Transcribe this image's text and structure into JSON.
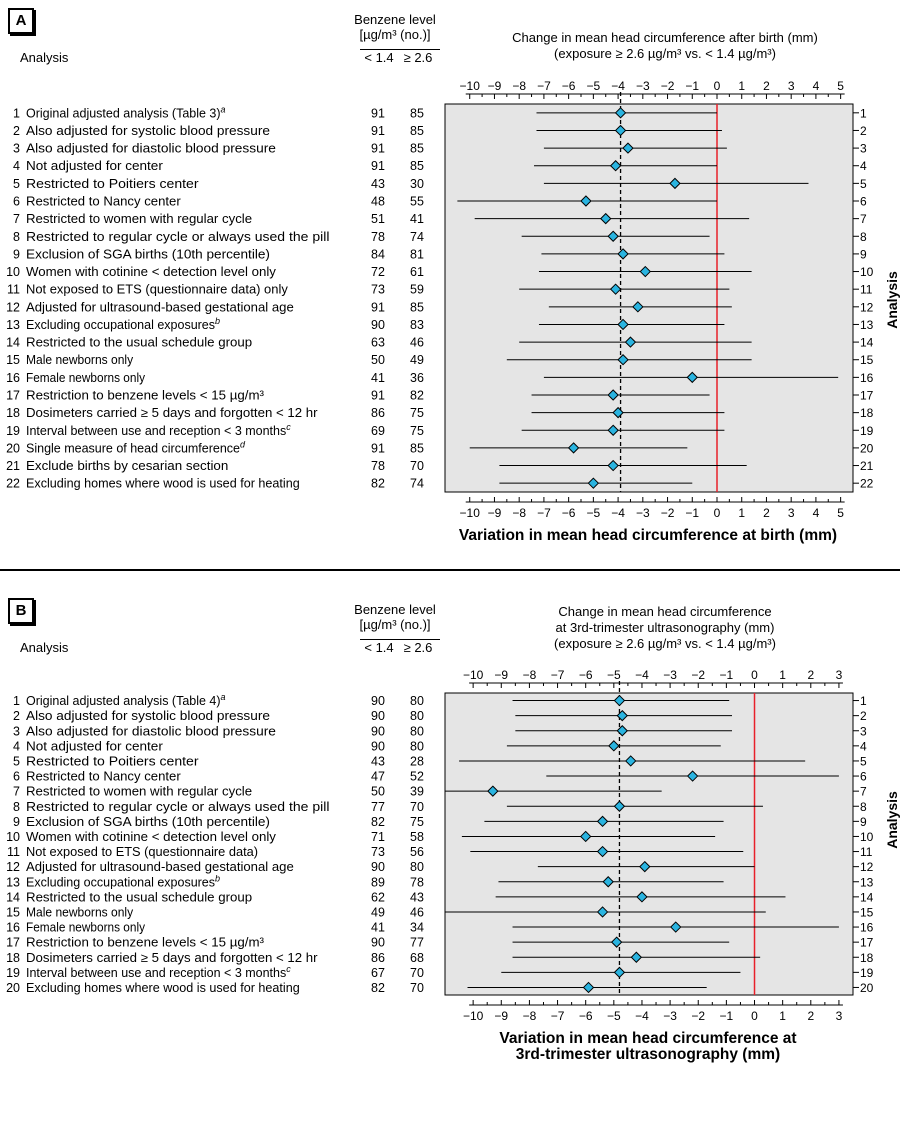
{
  "chart_data": [
    {
      "type": "forest",
      "panel_label": "A",
      "row_header": "Analysis",
      "benzene_header": [
        "Benzene level",
        "[µg/m³ (no.)]"
      ],
      "group_headers": [
        "< 1.4",
        "≥ 2.6"
      ],
      "effect_header": [
        "Change in mean head circumference after birth (mm)",
        "(exposure ≥ 2.6 µg/m³ vs. < 1.4 µg/m³)"
      ],
      "xlabel": "Variation in mean head circumference at birth (mm)",
      "ylabel": "Analysis",
      "xlim": [
        -11,
        5.5
      ],
      "xticks": [
        -10,
        -9,
        -8,
        -7,
        -6,
        -5,
        -4,
        -3,
        -2,
        -1,
        0,
        1,
        2,
        3,
        4,
        5
      ],
      "reference_line": 0,
      "dashed_line": -3.9,
      "rows": [
        {
          "n": 1,
          "label": "Original adjusted analysis (Table 3)",
          "sup": "a",
          "n_low": "91",
          "n_high": "85",
          "est": -3.9,
          "lo": -7.3,
          "hi": 0.0
        },
        {
          "n": 2,
          "label": "Also adjusted for systolic blood pressure",
          "sup": "",
          "n_low": "91",
          "n_high": "85",
          "est": -3.9,
          "lo": -7.3,
          "hi": 0.2
        },
        {
          "n": 3,
          "label": "Also adjusted for diastolic blood pressure",
          "sup": "",
          "n_low": "91",
          "n_high": "85",
          "est": -3.6,
          "lo": -7.0,
          "hi": 0.4
        },
        {
          "n": 4,
          "label": "Not adjusted for center",
          "sup": "",
          "n_low": "91",
          "n_high": "85",
          "est": -4.1,
          "lo": -7.4,
          "hi": 0.0
        },
        {
          "n": 5,
          "label": "Restricted to Poitiers center",
          "sup": "",
          "n_low": "43",
          "n_high": "30",
          "est": -1.7,
          "lo": -7.0,
          "hi": 3.7
        },
        {
          "n": 6,
          "label": "Restricted to Nancy center",
          "sup": "",
          "n_low": "48",
          "n_high": "55",
          "est": -5.3,
          "lo": -10.5,
          "hi": 0.0
        },
        {
          "n": 7,
          "label": "Restricted to women with regular cycle",
          "sup": "",
          "n_low": "51",
          "n_high": "41",
          "est": -4.5,
          "lo": -9.8,
          "hi": 1.3
        },
        {
          "n": 8,
          "label": "Restricted to regular cycle or always used the pill",
          "sup": "",
          "n_low": "78",
          "n_high": "74",
          "est": -4.2,
          "lo": -7.9,
          "hi": -0.3
        },
        {
          "n": 9,
          "label": "Exclusion of SGA births (10th percentile)",
          "sup": "",
          "n_low": "84",
          "n_high": "81",
          "est": -3.8,
          "lo": -7.1,
          "hi": 0.3
        },
        {
          "n": 10,
          "label": "Women with cotinine < detection level only",
          "sup": "",
          "n_low": "72",
          "n_high": "61",
          "est": -2.9,
          "lo": -7.2,
          "hi": 1.4
        },
        {
          "n": 11,
          "label": "Not exposed to ETS (questionnaire data) only",
          "sup": "",
          "n_low": "73",
          "n_high": "59",
          "est": -4.1,
          "lo": -8.0,
          "hi": 0.5
        },
        {
          "n": 12,
          "label": "Adjusted for ultrasound-based gestational age",
          "sup": "",
          "n_low": "91",
          "n_high": "85",
          "est": -3.2,
          "lo": -6.8,
          "hi": 0.6
        },
        {
          "n": 13,
          "label": "Excluding occupational exposures",
          "sup": "b",
          "n_low": "90",
          "n_high": "83",
          "est": -3.8,
          "lo": -7.2,
          "hi": 0.3
        },
        {
          "n": 14,
          "label": "Restricted to the usual schedule group",
          "sup": "",
          "n_low": "63",
          "n_high": "46",
          "est": -3.5,
          "lo": -8.0,
          "hi": 1.4
        },
        {
          "n": 15,
          "label": "Male newborns only",
          "sup": "",
          "n_low": "50",
          "n_high": "49",
          "est": -3.8,
          "lo": -8.5,
          "hi": 1.4
        },
        {
          "n": 16,
          "label": "Female newborns only",
          "sup": "",
          "n_low": "41",
          "n_high": "36",
          "est": -1.0,
          "lo": -7.0,
          "hi": 4.9
        },
        {
          "n": 17,
          "label": "Restriction to benzene levels < 15 µg/m³",
          "sup": "",
          "n_low": "91",
          "n_high": "82",
          "est": -4.2,
          "lo": -7.5,
          "hi": -0.3
        },
        {
          "n": 18,
          "label": "Dosimeters carried ≥ 5 days and forgotten < 12 hr",
          "sup": "",
          "n_low": "86",
          "n_high": "75",
          "est": -4.0,
          "lo": -7.5,
          "hi": 0.3
        },
        {
          "n": 19,
          "label": "Interval between use and reception < 3 months",
          "sup": "c",
          "n_low": "69",
          "n_high": "75",
          "est": -4.2,
          "lo": -7.9,
          "hi": 0.3
        },
        {
          "n": 20,
          "label": "Single measure of head circumference",
          "sup": "d",
          "n_low": "91",
          "n_high": "85",
          "est": -5.8,
          "lo": -10.0,
          "hi": -1.2
        },
        {
          "n": 21,
          "label": "Exclude births by cesarian section",
          "sup": "",
          "n_low": "78",
          "n_high": "70",
          "est": -4.2,
          "lo": -8.8,
          "hi": 1.2
        },
        {
          "n": 22,
          "label": "Excluding homes where wood is used for heating",
          "sup": "",
          "n_low": "82",
          "n_high": "74",
          "est": -5.0,
          "lo": -8.8,
          "hi": -1.0
        }
      ]
    },
    {
      "type": "forest",
      "panel_label": "B",
      "row_header": "Analysis",
      "benzene_header": [
        "Benzene level",
        "[µg/m³ (no.)]"
      ],
      "group_headers": [
        "< 1.4",
        "≥ 2.6"
      ],
      "effect_header": [
        "Change in mean head circumference",
        "at 3rd-trimester ultrasonography (mm)",
        "(exposure ≥ 2.6 µg/m³ vs. < 1.4 µg/m³)"
      ],
      "xlabel": "Variation in mean head circumference at 3rd-trimester ultrasonography (mm)",
      "xlabel_lines": [
        "Variation in mean head circumference at",
        "3rd-trimester ultrasonography (mm)"
      ],
      "ylabel": "Analysis",
      "xlim": [
        -11,
        3.5
      ],
      "xticks": [
        -10,
        -9,
        -8,
        -7,
        -6,
        -5,
        -4,
        -3,
        -2,
        -1,
        0,
        1,
        2,
        3
      ],
      "reference_line": 0,
      "dashed_line": -4.8,
      "rows": [
        {
          "n": 1,
          "label": "Original adjusted analysis (Table 4)",
          "sup": "a",
          "n_low": "90",
          "n_high": "80",
          "est": -4.8,
          "lo": -8.6,
          "hi": -0.9
        },
        {
          "n": 2,
          "label": "Also adjusted for systolic blood pressure",
          "sup": "",
          "n_low": "90",
          "n_high": "80",
          "est": -4.7,
          "lo": -8.5,
          "hi": -0.8
        },
        {
          "n": 3,
          "label": "Also adjusted for diastolic blood pressure",
          "sup": "",
          "n_low": "90",
          "n_high": "80",
          "est": -4.7,
          "lo": -8.5,
          "hi": -0.8
        },
        {
          "n": 4,
          "label": "Not adjusted for center",
          "sup": "",
          "n_low": "90",
          "n_high": "80",
          "est": -5.0,
          "lo": -8.8,
          "hi": -1.2
        },
        {
          "n": 5,
          "label": "Restricted to Poitiers center",
          "sup": "",
          "n_low": "43",
          "n_high": "28",
          "est": -4.4,
          "lo": -10.5,
          "hi": 1.8
        },
        {
          "n": 6,
          "label": "Restricted to Nancy center",
          "sup": "",
          "n_low": "47",
          "n_high": "52",
          "est": -2.2,
          "lo": -7.4,
          "hi": 3.0
        },
        {
          "n": 7,
          "label": "Restricted to women with regular cycle",
          "sup": "",
          "n_low": "50",
          "n_high": "39",
          "est": -9.3,
          "lo": -11.0,
          "hi": -3.3,
          "lo_dashed": true
        },
        {
          "n": 8,
          "label": "Restricted to regular cycle or always used the pill",
          "sup": "",
          "n_low": "77",
          "n_high": "70",
          "est": -4.8,
          "lo": -8.8,
          "hi": 0.3
        },
        {
          "n": 9,
          "label": "Exclusion of SGA births (10th percentile)",
          "sup": "",
          "n_low": "82",
          "n_high": "75",
          "est": -5.4,
          "lo": -9.6,
          "hi": -1.1
        },
        {
          "n": 10,
          "label": "Women with cotinine < detection level only",
          "sup": "",
          "n_low": "71",
          "n_high": "58",
          "est": -6.0,
          "lo": -10.4,
          "hi": -1.4
        },
        {
          "n": 11,
          "label": "Not exposed to ETS (questionnaire data)",
          "sup": "",
          "n_low": "73",
          "n_high": "56",
          "est": -5.4,
          "lo": -10.1,
          "hi": -0.4
        },
        {
          "n": 12,
          "label": "Adjusted for ultrasound-based gestational age",
          "sup": "",
          "n_low": "90",
          "n_high": "80",
          "est": -3.9,
          "lo": -7.7,
          "hi": 0.0
        },
        {
          "n": 13,
          "label": "Excluding occupational exposures",
          "sup": "b",
          "n_low": "89",
          "n_high": "78",
          "est": -5.2,
          "lo": -9.1,
          "hi": -1.1
        },
        {
          "n": 14,
          "label": "Restricted to the usual schedule group",
          "sup": "",
          "n_low": "62",
          "n_high": "43",
          "est": -4.0,
          "lo": -9.2,
          "hi": 1.1
        },
        {
          "n": 15,
          "label": "Male newborns only",
          "sup": "",
          "n_low": "49",
          "n_high": "46",
          "est": -5.4,
          "lo": -11.0,
          "hi": 0.4
        },
        {
          "n": 16,
          "label": "Female newborns only",
          "sup": "",
          "n_low": "41",
          "n_high": "34",
          "est": -2.8,
          "lo": -8.6,
          "hi": 3.0
        },
        {
          "n": 17,
          "label": "Restriction to benzene levels < 15 µg/m³",
          "sup": "",
          "n_low": "90",
          "n_high": "77",
          "est": -4.9,
          "lo": -8.6,
          "hi": -0.9
        },
        {
          "n": 18,
          "label": "Dosimeters carried ≥ 5 days and forgotten < 12 hr",
          "sup": "",
          "n_low": "86",
          "n_high": "68",
          "est": -4.2,
          "lo": -8.6,
          "hi": 0.2
        },
        {
          "n": 19,
          "label": "Interval between use and reception < 3 months",
          "sup": "c",
          "n_low": "67",
          "n_high": "70",
          "est": -4.8,
          "lo": -9.0,
          "hi": -0.5
        },
        {
          "n": 20,
          "label": "Excluding homes where wood is used for heating",
          "sup": "",
          "n_low": "82",
          "n_high": "70",
          "est": -5.9,
          "lo": -10.2,
          "hi": -1.7
        }
      ]
    }
  ],
  "colors": {
    "plot_background": "#e5e5e5",
    "marker": "#2ab4e0",
    "reference_line": "#e8202a",
    "ink": "#000000"
  }
}
